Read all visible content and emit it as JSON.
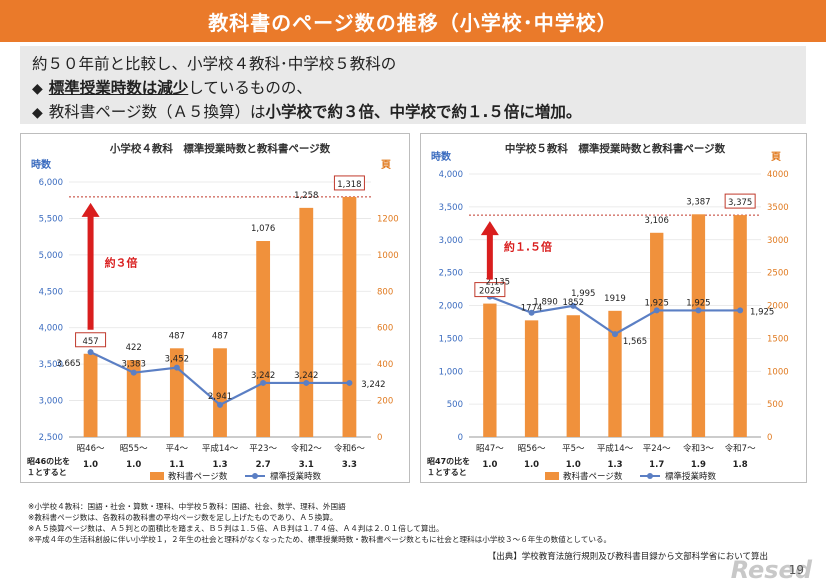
{
  "title": "教科書のページ数の推移（小学校･中学校）",
  "summary": {
    "line1": "約５０年前と比較し、小学校４教科･中学校５教科の",
    "bullet": "◆",
    "line2_bold": "標準授業時数は減少",
    "line2_rest": "しているものの、",
    "line3_a": "教科書ページ数（Ａ５換算）は",
    "line3_b": "小学校で約３倍、中学校で約１.５倍に増加。"
  },
  "chart_data": [
    {
      "type": "bar",
      "title": "小学校４教科　標準授業時数と教科書ページ数",
      "left_axis_label": "時数",
      "right_axis_label": "頁",
      "categories": [
        "昭46～",
        "昭55～",
        "平4～",
        "平成14～",
        "平23～",
        "令和2～",
        "令和6～"
      ],
      "left_ylim": [
        2500,
        6000
      ],
      "left_ticks": [
        "2,500",
        "3,000",
        "3,500",
        "4,000",
        "4,500",
        "5,000",
        "5,500",
        "6,000"
      ],
      "right_ylim": [
        0,
        1400
      ],
      "right_ticks": [
        "0",
        "200",
        "400",
        "600",
        "800",
        "1000",
        "1200",
        "頁"
      ],
      "series": [
        {
          "name": "教科書ページ数",
          "axis": "right",
          "kind": "bar",
          "color": "#f0913c",
          "values": [
            457,
            422,
            487,
            487,
            1076,
            1258,
            1318
          ],
          "labels": [
            "457",
            "422",
            "487",
            "487",
            "1,076",
            "1,258",
            "1,318"
          ]
        },
        {
          "name": "標準授業時数",
          "axis": "left",
          "kind": "line",
          "color": "#5b7fc4",
          "values": [
            3665,
            3383,
            3452,
            2941,
            3242,
            3242,
            3242
          ],
          "labels": [
            "3,665",
            "3,383",
            "3,452",
            "2,941",
            "3,242",
            "3,242",
            "3,242"
          ]
        }
      ],
      "boxed_labels": [
        0,
        6
      ],
      "arrow_text": "約３倍",
      "ratio_caption": "昭46の比を１とすると",
      "ratios": [
        "1.0",
        "1.0",
        "1.1",
        "1.3",
        "2.7",
        "3.1",
        "3.3"
      ],
      "legend_bar": "教科書ページ数",
      "legend_line": "標準授業時数"
    },
    {
      "type": "bar",
      "title": "中学校５教科　標準授業時数と教科書ページ数",
      "left_axis_label": "時数",
      "right_axis_label": "頁",
      "categories": [
        "昭47～",
        "昭56～",
        "平5～",
        "平成14～",
        "平24～",
        "令和3～",
        "令和7～"
      ],
      "left_ylim": [
        0,
        4000
      ],
      "left_ticks": [
        "0",
        "500",
        "1,000",
        "1,500",
        "2,000",
        "2,500",
        "3,000",
        "3,500",
        "4,000"
      ],
      "right_ylim": [
        0,
        4000
      ],
      "right_ticks": [
        "0",
        "500",
        "1000",
        "1500",
        "2000",
        "2500",
        "3000",
        "3500",
        "4000"
      ],
      "series": [
        {
          "name": "教科書ページ数",
          "axis": "right",
          "kind": "bar",
          "color": "#f0913c",
          "values": [
            2029,
            1774,
            1852,
            1919,
            3106,
            3387,
            3375
          ],
          "labels": [
            "2029",
            "1774",
            "1852",
            "1919",
            "3,106",
            "3,387",
            "3,375"
          ]
        },
        {
          "name": "標準授業時数",
          "axis": "left",
          "kind": "line",
          "color": "#5b7fc4",
          "values": [
            2135,
            1890,
            1995,
            1565,
            1925,
            1925,
            1925
          ],
          "labels": [
            "2,135",
            "1,890",
            "1,995",
            "1,565",
            "1,925",
            "1,925",
            "1,925"
          ]
        }
      ],
      "boxed_labels": [
        0,
        6
      ],
      "arrow_text": "約１.５倍",
      "ratio_caption": "昭47の比を１とすると",
      "ratios": [
        "1.0",
        "1.0",
        "1.0",
        "1.3",
        "1.7",
        "1.9",
        "1.8"
      ],
      "legend_bar": "教科書ページ数",
      "legend_line": "標準授業時数"
    }
  ],
  "notes": [
    "※小学校４教科：国語・社会・算数・理科、中学校５教科：国語、社会、数学、理科、外国語",
    "※教科書ページ数は、各教科の教科書の平均ページ数を足し上げたものであり、Ａ５換算。",
    "※Ａ５換算ページ数は、Ａ５判との面積比を踏まえ、Ｂ５判は１.５倍、ＡＢ判は１.７４倍、Ａ４判は２.０１倍して算出。",
    "※平成４年の生活科創設に伴い小学校１，２年生の社会と理科がなくなったため、標準授業時数・教科書ページ数ともに社会と理科は小学校３～６年生の数値としている。"
  ],
  "source": "【出典】学校教育法施行規則及び教科書目録から文部科学省において算出",
  "page_number": "19",
  "logo": "Resed"
}
